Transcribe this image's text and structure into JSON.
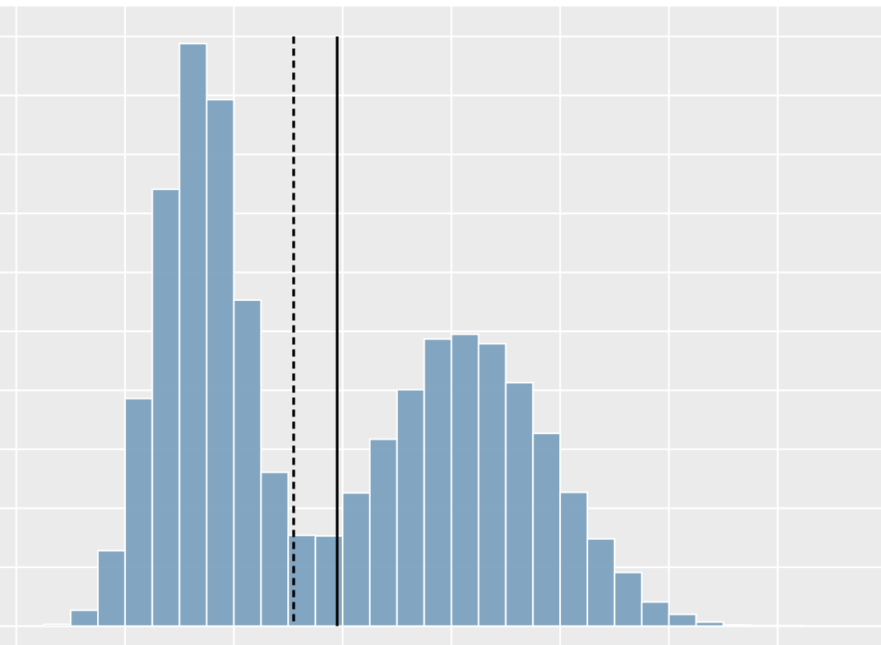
{
  "chart_data": {
    "type": "bar",
    "subtype": "histogram",
    "title": "",
    "xlabel": "",
    "ylabel": "",
    "grid": true,
    "background": "#ebebeb",
    "grid_color": "#ffffff",
    "bar_color": "#7ca2c0",
    "bar_edge_color": "#ffffff",
    "bin_width": 0.25,
    "xlim": [
      -0.15,
      7.95
    ],
    "ylim": [
      0,
      10.5
    ],
    "x_gridlines": [
      0,
      1,
      2,
      3,
      4,
      5,
      6,
      7
    ],
    "y_gridlines": [
      0,
      1,
      2,
      3,
      4,
      5,
      6,
      7,
      8,
      9,
      10
    ],
    "bins": [
      {
        "x0": 0.25,
        "x1": 0.5,
        "value": 0.03
      },
      {
        "x0": 0.5,
        "x1": 0.75,
        "value": 0.27
      },
      {
        "x0": 0.75,
        "x1": 1.0,
        "value": 1.28
      },
      {
        "x0": 1.0,
        "x1": 1.25,
        "value": 3.86
      },
      {
        "x0": 1.25,
        "x1": 1.5,
        "value": 7.41
      },
      {
        "x0": 1.5,
        "x1": 1.75,
        "value": 9.88
      },
      {
        "x0": 1.75,
        "x1": 2.0,
        "value": 8.93
      },
      {
        "x0": 2.0,
        "x1": 2.25,
        "value": 5.53
      },
      {
        "x0": 2.25,
        "x1": 2.5,
        "value": 2.61
      },
      {
        "x0": 2.5,
        "x1": 2.75,
        "value": 1.54
      },
      {
        "x0": 2.75,
        "x1": 3.0,
        "value": 1.53
      },
      {
        "x0": 3.0,
        "x1": 3.25,
        "value": 2.26
      },
      {
        "x0": 3.25,
        "x1": 3.5,
        "value": 3.17
      },
      {
        "x0": 3.5,
        "x1": 3.75,
        "value": 4.01
      },
      {
        "x0": 3.75,
        "x1": 4.0,
        "value": 4.87
      },
      {
        "x0": 4.0,
        "x1": 4.25,
        "value": 4.95
      },
      {
        "x0": 4.25,
        "x1": 4.5,
        "value": 4.79
      },
      {
        "x0": 4.5,
        "x1": 4.75,
        "value": 4.13
      },
      {
        "x0": 4.75,
        "x1": 5.0,
        "value": 3.27
      },
      {
        "x0": 5.0,
        "x1": 5.25,
        "value": 2.27
      },
      {
        "x0": 5.25,
        "x1": 5.5,
        "value": 1.48
      },
      {
        "x0": 5.5,
        "x1": 5.75,
        "value": 0.91
      },
      {
        "x0": 5.75,
        "x1": 6.0,
        "value": 0.41
      },
      {
        "x0": 6.0,
        "x1": 6.25,
        "value": 0.2
      },
      {
        "x0": 6.25,
        "x1": 6.5,
        "value": 0.07
      },
      {
        "x0": 6.5,
        "x1": 6.75,
        "value": 0.02
      },
      {
        "x0": 6.75,
        "x1": 7.0,
        "value": 0.01
      },
      {
        "x0": 7.0,
        "x1": 7.25,
        "value": 0.01
      }
    ],
    "reference_lines": [
      {
        "x": 2.55,
        "style": "dashed",
        "color": "#000000"
      },
      {
        "x": 2.95,
        "style": "solid",
        "color": "#000000"
      }
    ]
  }
}
